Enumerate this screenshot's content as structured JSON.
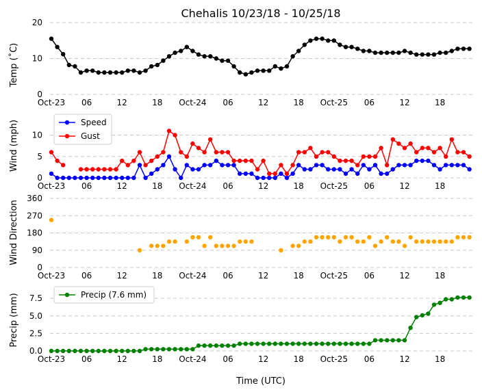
{
  "title": "Chehalis 10/23/18 - 10/25/18",
  "x_axis_label": "Time (UTC)",
  "x_tick_labels": [
    "Oct-23",
    "06",
    "12",
    "18",
    "Oct-24",
    "06",
    "12",
    "18",
    "Oct-25",
    "06",
    "12",
    "18"
  ],
  "chart_data": [
    {
      "type": "line",
      "ylabel": "Temp (˚C)",
      "ylim": [
        0,
        20
      ],
      "yticks": [
        0,
        10,
        20
      ],
      "x_unit": "hours since first x tick (Oct-23 00 UTC)",
      "x": [
        0,
        1,
        2,
        3,
        4,
        5,
        6,
        7,
        8,
        9,
        10,
        11,
        12,
        13,
        14,
        15,
        16,
        17,
        18,
        19,
        20,
        21,
        22,
        23,
        24,
        25,
        26,
        27,
        28,
        29,
        30,
        31,
        32,
        33,
        34,
        35,
        36,
        37,
        38,
        39,
        40,
        41,
        42,
        43,
        44,
        45,
        46,
        47,
        48,
        49,
        50,
        51,
        52,
        53,
        54,
        55,
        56,
        57,
        58,
        59,
        60,
        61,
        62,
        63,
        64,
        65,
        66,
        67,
        68,
        69,
        70,
        71
      ],
      "series": [
        {
          "color": "#000000",
          "values": [
            15.5,
            13.2,
            11.2,
            8.2,
            7.8,
            6.1,
            6.6,
            6.6,
            6.1,
            6.1,
            6.1,
            6.1,
            6.1,
            6.6,
            6.6,
            6.1,
            6.6,
            7.8,
            8.2,
            9.4,
            10.6,
            11.6,
            12.1,
            13.2,
            12.1,
            11.1,
            10.6,
            10.6,
            10.0,
            9.4,
            9.4,
            7.8,
            6.1,
            5.6,
            6.1,
            6.6,
            6.6,
            6.6,
            7.8,
            7.2,
            7.8,
            10.6,
            12.1,
            13.8,
            15.0,
            15.5,
            15.5,
            15.0,
            15.0,
            13.8,
            13.2,
            13.2,
            12.7,
            12.1,
            12.1,
            11.6,
            11.6,
            11.6,
            11.6,
            11.6,
            12.1,
            11.6,
            11.1,
            11.1,
            11.1,
            11.1,
            11.6,
            11.6,
            12.1,
            12.7,
            12.7,
            12.7
          ]
        }
      ]
    },
    {
      "type": "line",
      "ylabel": "Wind (mph)",
      "ylim": [
        0,
        12
      ],
      "yticks": [
        0,
        5,
        10
      ],
      "legend_position": "top-left",
      "series": [
        {
          "name": "Speed",
          "color": "#0000ff",
          "values": [
            1,
            0,
            0,
            0,
            0,
            0,
            0,
            0,
            0,
            0,
            0,
            0,
            0,
            0,
            0,
            3,
            0,
            1,
            2,
            3,
            5,
            2,
            0,
            3,
            2,
            2,
            3,
            3,
            4,
            3,
            3,
            3,
            1,
            1,
            1,
            0,
            0,
            0,
            0,
            1,
            0,
            1,
            3,
            2,
            2,
            3,
            3,
            2,
            2,
            2,
            1,
            2,
            1,
            3,
            2,
            3,
            1,
            1,
            2,
            3,
            3,
            3,
            4,
            4,
            4,
            3,
            2,
            3,
            3,
            3,
            3,
            2
          ]
        },
        {
          "name": "Gust",
          "color": "#ff0000",
          "values": [
            6,
            4,
            3,
            null,
            null,
            2,
            2,
            2,
            2,
            2,
            2,
            2,
            4,
            3,
            4,
            6,
            3,
            4,
            5,
            6,
            11,
            10,
            6,
            5,
            8,
            7,
            6,
            9,
            6,
            6,
            6,
            4,
            4,
            4,
            4,
            2,
            4,
            1,
            1,
            3,
            1,
            3,
            6,
            6,
            7,
            5,
            6,
            6,
            5,
            4,
            4,
            4,
            3,
            5,
            5,
            5,
            7,
            3,
            9,
            8,
            7,
            8,
            6,
            7,
            7,
            6,
            7,
            5,
            9,
            6,
            6,
            5
          ]
        }
      ]
    },
    {
      "type": "scatter",
      "ylabel": "Wind Direction",
      "ylim": [
        0,
        360
      ],
      "yticks": [
        0,
        90,
        180,
        270,
        360
      ],
      "series": [
        {
          "color": "#ffa500",
          "values": [
            247.5,
            null,
            null,
            null,
            null,
            null,
            null,
            null,
            null,
            null,
            null,
            null,
            null,
            null,
            null,
            90,
            null,
            112.5,
            112.5,
            112.5,
            135,
            135,
            null,
            135,
            157.5,
            157.5,
            112.5,
            157.5,
            112.5,
            112.5,
            112.5,
            112.5,
            135,
            135,
            135,
            null,
            null,
            null,
            null,
            90,
            null,
            112.5,
            112.5,
            135,
            135,
            157.5,
            157.5,
            157.5,
            157.5,
            135,
            157.5,
            157.5,
            135,
            135,
            157.5,
            112.5,
            135,
            157.5,
            135,
            135,
            112.5,
            157.5,
            135,
            135,
            135,
            135,
            135,
            135,
            135,
            157.5,
            157.5,
            157.5
          ]
        }
      ]
    },
    {
      "type": "line",
      "ylabel": "Precip (mm)",
      "ylim": [
        0,
        8
      ],
      "yticks": [
        0.0,
        2.5,
        5.0,
        7.5
      ],
      "legend_position": "top-left",
      "series": [
        {
          "name": "Precip (7.6 mm)",
          "color": "#008000",
          "values": [
            0,
            0,
            0,
            0,
            0,
            0,
            0,
            0,
            0,
            0,
            0,
            0,
            0,
            0,
            0,
            0,
            0.25,
            0.25,
            0.25,
            0.25,
            0.25,
            0.25,
            0.25,
            0.25,
            0.25,
            0.76,
            0.76,
            0.76,
            0.76,
            0.76,
            0.76,
            0.76,
            1.02,
            1.02,
            1.02,
            1.02,
            1.02,
            1.02,
            1.02,
            1.02,
            1.02,
            1.02,
            1.02,
            1.02,
            1.02,
            1.02,
            1.02,
            1.02,
            1.02,
            1.02,
            1.02,
            1.02,
            1.02,
            1.02,
            1.02,
            1.52,
            1.52,
            1.52,
            1.52,
            1.52,
            1.52,
            3.3,
            4.83,
            5.08,
            5.33,
            6.6,
            6.86,
            7.37,
            7.37,
            7.62,
            7.62,
            7.62
          ]
        }
      ]
    }
  ]
}
